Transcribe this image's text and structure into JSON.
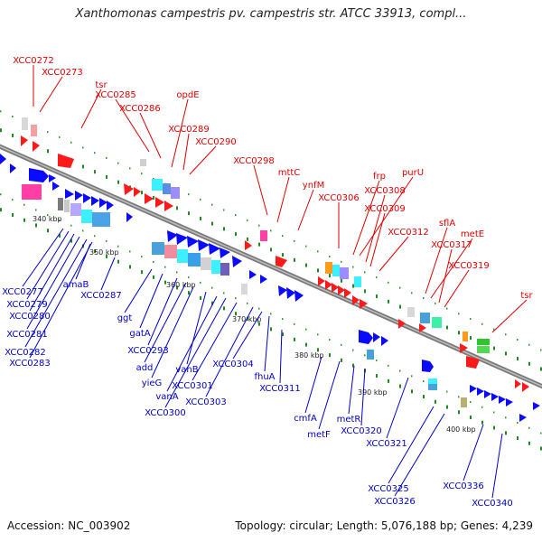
{
  "title": "Xanthomonas campestris pv. campestris str. ATCC 33913, compl...",
  "footer": {
    "accession": "Accession: NC_003902",
    "summary": "Topology: circular; Length: 5,076,188 bp; Genes: 4,239"
  },
  "ticks": [
    "340 kbp",
    "350 kbp",
    "360 kbp",
    "370 kbp",
    "380 kbp",
    "390 kbp",
    "400 kbp"
  ],
  "upper_labels": [
    "XCC0272",
    "XCC0273",
    "tsr",
    "XCC0285",
    "XCC0286",
    "opdE",
    "XCC0289",
    "XCC0290",
    "XCC0298",
    "mttC",
    "ynfM",
    "XCC0306",
    "frp",
    "purU",
    "XCC0308",
    "XCC0309",
    "XCC0312",
    "sflA",
    "metE",
    "XCC0317",
    "XCC0319",
    "tsr"
  ],
  "lower_labels": [
    "XCC0277",
    "XCC0279",
    "XCC0280",
    "XCC0281",
    "XCC0282",
    "XCC0283",
    "amaB",
    "XCC0287",
    "ggt",
    "gatA",
    "XCC0293",
    "add",
    "yieG",
    "vanB",
    "vanA",
    "XCC0300",
    "XCC0301",
    "XCC0303",
    "XCC0304",
    "fhuA",
    "XCC0311",
    "cmfA",
    "metF",
    "metR",
    "XCC0320",
    "XCC0321",
    "XCC0325",
    "XCC0326",
    "XCC0336",
    "XCC0340"
  ],
  "colors": {
    "upper_label": "#e00000",
    "lower_label": "#0000c8",
    "backbone": "#888888",
    "forward": "#ff1a1a",
    "reverse": "#0a0aff",
    "tick_mark": "#1a7a1a"
  }
}
